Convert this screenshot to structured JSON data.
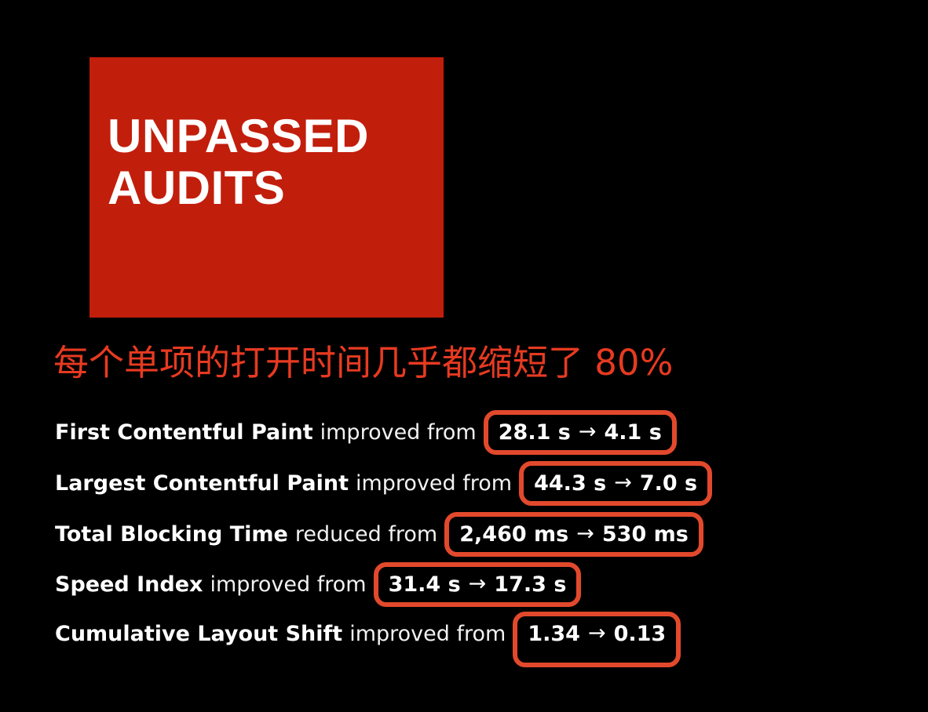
{
  "colors": {
    "background": "#000000",
    "block_red": "#c21e0c",
    "heading_red": "#e73a21",
    "box_stroke": "#e2492c",
    "text_white": "#ffffff"
  },
  "title_block": {
    "line1": "UNPASSED",
    "line2": "AUDITS"
  },
  "heading": {
    "text": "每个单项的打开时间几乎都缩短了 80%"
  },
  "metrics": [
    {
      "label": "First Contentful Paint",
      "verb": "improved from",
      "before": "28.1 s",
      "arrow": "→",
      "after": "4.1 s"
    },
    {
      "label": "Largest Contentful Paint",
      "verb": "improved from",
      "before": "44.3 s",
      "arrow": "→",
      "after": "7.0 s"
    },
    {
      "label": "Total Blocking Time",
      "verb": "reduced from",
      "before": "2,460 ms",
      "arrow": "→",
      "after": "530 ms"
    },
    {
      "label": "Speed Index",
      "verb": "improved from",
      "before": "31.4 s",
      "arrow": "→",
      "after": "17.3 s"
    },
    {
      "label": "Cumulative Layout Shift",
      "verb": "improved from",
      "before": "1.34",
      "arrow": "→",
      "after": "0.13"
    }
  ]
}
